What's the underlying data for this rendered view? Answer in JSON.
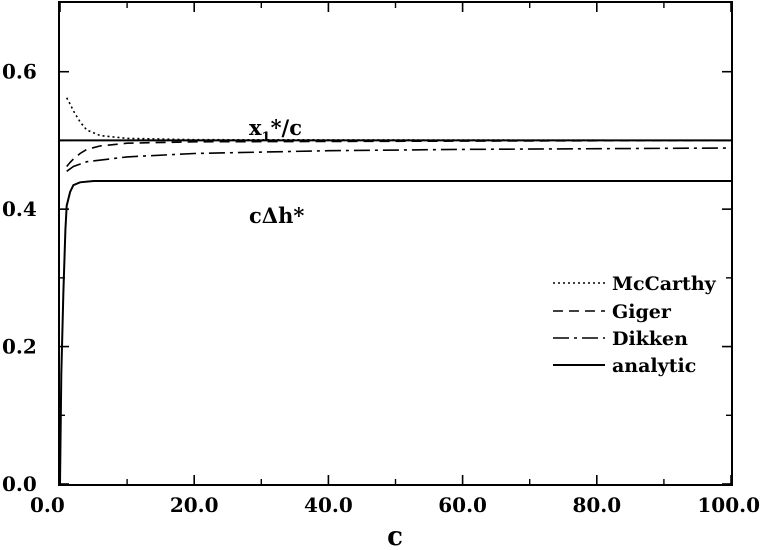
{
  "chart_data": {
    "type": "line",
    "title": "",
    "xlabel": "c",
    "ylabel": "",
    "xlim": [
      0,
      100
    ],
    "ylim": [
      0,
      0.7
    ],
    "xticks": [
      0,
      20,
      40,
      60,
      80,
      100
    ],
    "xtick_labels": [
      "0.0",
      "20.0",
      "40.0",
      "60.0",
      "80.0",
      "100.0"
    ],
    "yticks": [
      0,
      0.2,
      0.4,
      0.6
    ],
    "ytick_labels": [
      "0.0",
      "0.2",
      "0.4",
      "0.6"
    ],
    "grid": false,
    "legend_position": "right",
    "annotations": [
      {
        "text_main": "x",
        "text_sub": "1",
        "text_rest": "*/c",
        "x": 25,
        "y": 0.55
      },
      {
        "text": "cΔh*",
        "x": 25,
        "y": 0.41
      }
    ],
    "series": [
      {
        "name": "McCarthy",
        "group": "x1*/c",
        "style": "dotted",
        "x": [
          1,
          1.5,
          2,
          3,
          4,
          6,
          10,
          20,
          100
        ],
        "y": [
          0.562,
          0.553,
          0.543,
          0.527,
          0.515,
          0.507,
          0.503,
          0.501,
          0.5
        ]
      },
      {
        "name": "Giger",
        "group": "x1*/c",
        "style": "dashed",
        "x": [
          1,
          1.5,
          2,
          3,
          4,
          6,
          10,
          20,
          100
        ],
        "y": [
          0.462,
          0.468,
          0.473,
          0.481,
          0.487,
          0.492,
          0.496,
          0.498,
          0.5
        ]
      },
      {
        "name": "Dikken",
        "group": "x1*/c",
        "style": "dashdot",
        "x": [
          1,
          2,
          4,
          10,
          20,
          40,
          60,
          80,
          100
        ],
        "y": [
          0.455,
          0.462,
          0.469,
          0.476,
          0.481,
          0.485,
          0.487,
          0.488,
          0.489
        ]
      },
      {
        "name": "analytic",
        "group": "x1*/c",
        "style": "solid",
        "x": [
          0,
          100
        ],
        "y": [
          0.5,
          0.5
        ]
      },
      {
        "name": "analytic",
        "group": "cΔh*",
        "style": "solid",
        "x": [
          0,
          0.2,
          0.5,
          0.8,
          1,
          1.5,
          2,
          3,
          5,
          10,
          100
        ],
        "y": [
          0.0,
          0.16,
          0.28,
          0.37,
          0.405,
          0.425,
          0.435,
          0.439,
          0.441,
          0.441,
          0.441
        ]
      }
    ],
    "legend": [
      {
        "label": "McCarthy",
        "style": "dotted"
      },
      {
        "label": "Giger",
        "style": "dashed"
      },
      {
        "label": "Dikken",
        "style": "dashdot"
      },
      {
        "label": "analytic",
        "style": "solid"
      }
    ]
  }
}
